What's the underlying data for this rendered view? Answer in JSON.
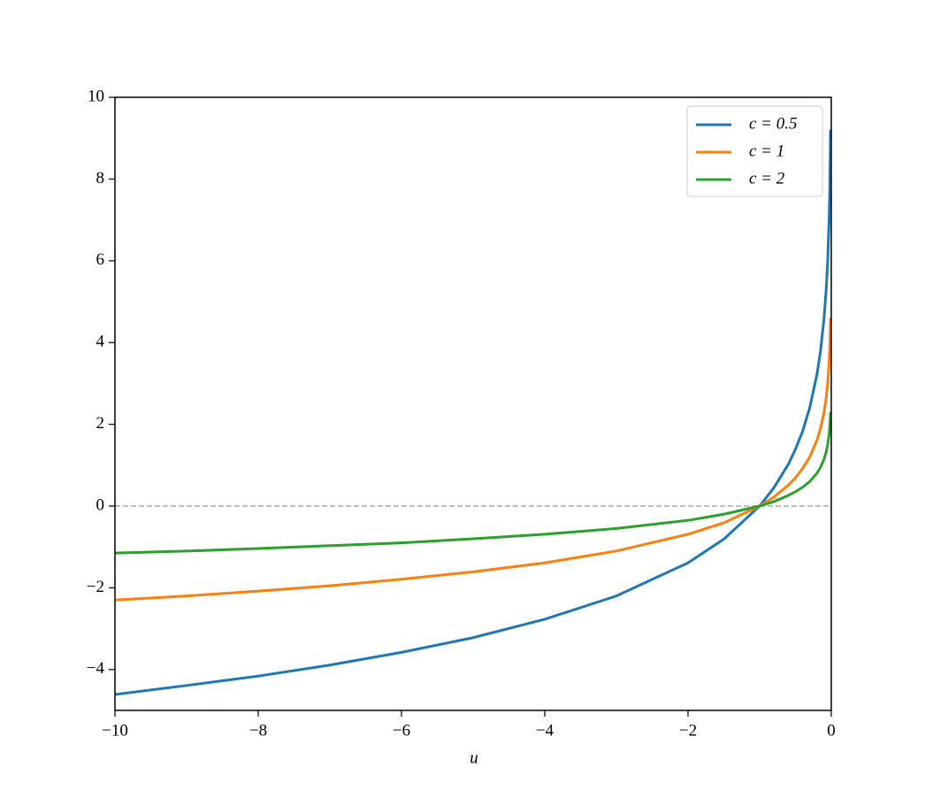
{
  "chart_data": {
    "type": "line",
    "x_label": "u",
    "x": [
      -10,
      -9,
      -8,
      -7,
      -6,
      -5,
      -4,
      -3,
      -2,
      -1.5,
      -1,
      -0.8,
      -0.6,
      -0.5,
      -0.4,
      -0.3,
      -0.2,
      -0.15,
      -0.1,
      -0.07,
      -0.05,
      -0.03,
      -0.02,
      -0.01
    ],
    "series": [
      {
        "name": "c = 0.5",
        "color": "#1f77b4",
        "values": [
          -4.61,
          -4.39,
          -4.16,
          -3.89,
          -3.58,
          -3.22,
          -2.77,
          -2.2,
          -1.39,
          -0.81,
          0,
          0.45,
          1.02,
          1.39,
          1.83,
          2.41,
          3.22,
          3.79,
          4.61,
          5.32,
          5.99,
          7.01,
          7.82,
          9.21
        ]
      },
      {
        "name": "c = 1",
        "color": "#ff7f0e",
        "values": [
          -2.3,
          -2.2,
          -2.08,
          -1.95,
          -1.79,
          -1.61,
          -1.39,
          -1.1,
          -0.69,
          -0.41,
          0,
          0.22,
          0.51,
          0.69,
          0.92,
          1.2,
          1.61,
          1.9,
          2.3,
          2.66,
          3.0,
          3.51,
          3.91,
          4.61
        ]
      },
      {
        "name": "c = 2",
        "color": "#2ca02c",
        "values": [
          -1.15,
          -1.1,
          -1.04,
          -0.97,
          -0.9,
          -0.8,
          -0.69,
          -0.55,
          -0.35,
          -0.2,
          0,
          0.11,
          0.26,
          0.35,
          0.46,
          0.6,
          0.8,
          0.95,
          1.15,
          1.33,
          1.5,
          1.75,
          1.96,
          2.3
        ]
      }
    ],
    "xlim": [
      -10,
      0
    ],
    "xticks": [
      {
        "value": -10,
        "label": "−10"
      },
      {
        "value": -8,
        "label": "−8"
      },
      {
        "value": -6,
        "label": "−6"
      },
      {
        "value": -4,
        "label": "−4"
      },
      {
        "value": -2,
        "label": "−2"
      },
      0
    ],
    "ylim": [
      -5,
      10
    ],
    "yticks": [
      {
        "value": -4,
        "label": "−4"
      },
      {
        "value": -2,
        "label": "−2"
      },
      0,
      2,
      4,
      6,
      8,
      10
    ],
    "reference_line": {
      "y": 0,
      "color": "#aaaaaa",
      "dashed": true
    },
    "legend": "upper right",
    "grid": false
  }
}
